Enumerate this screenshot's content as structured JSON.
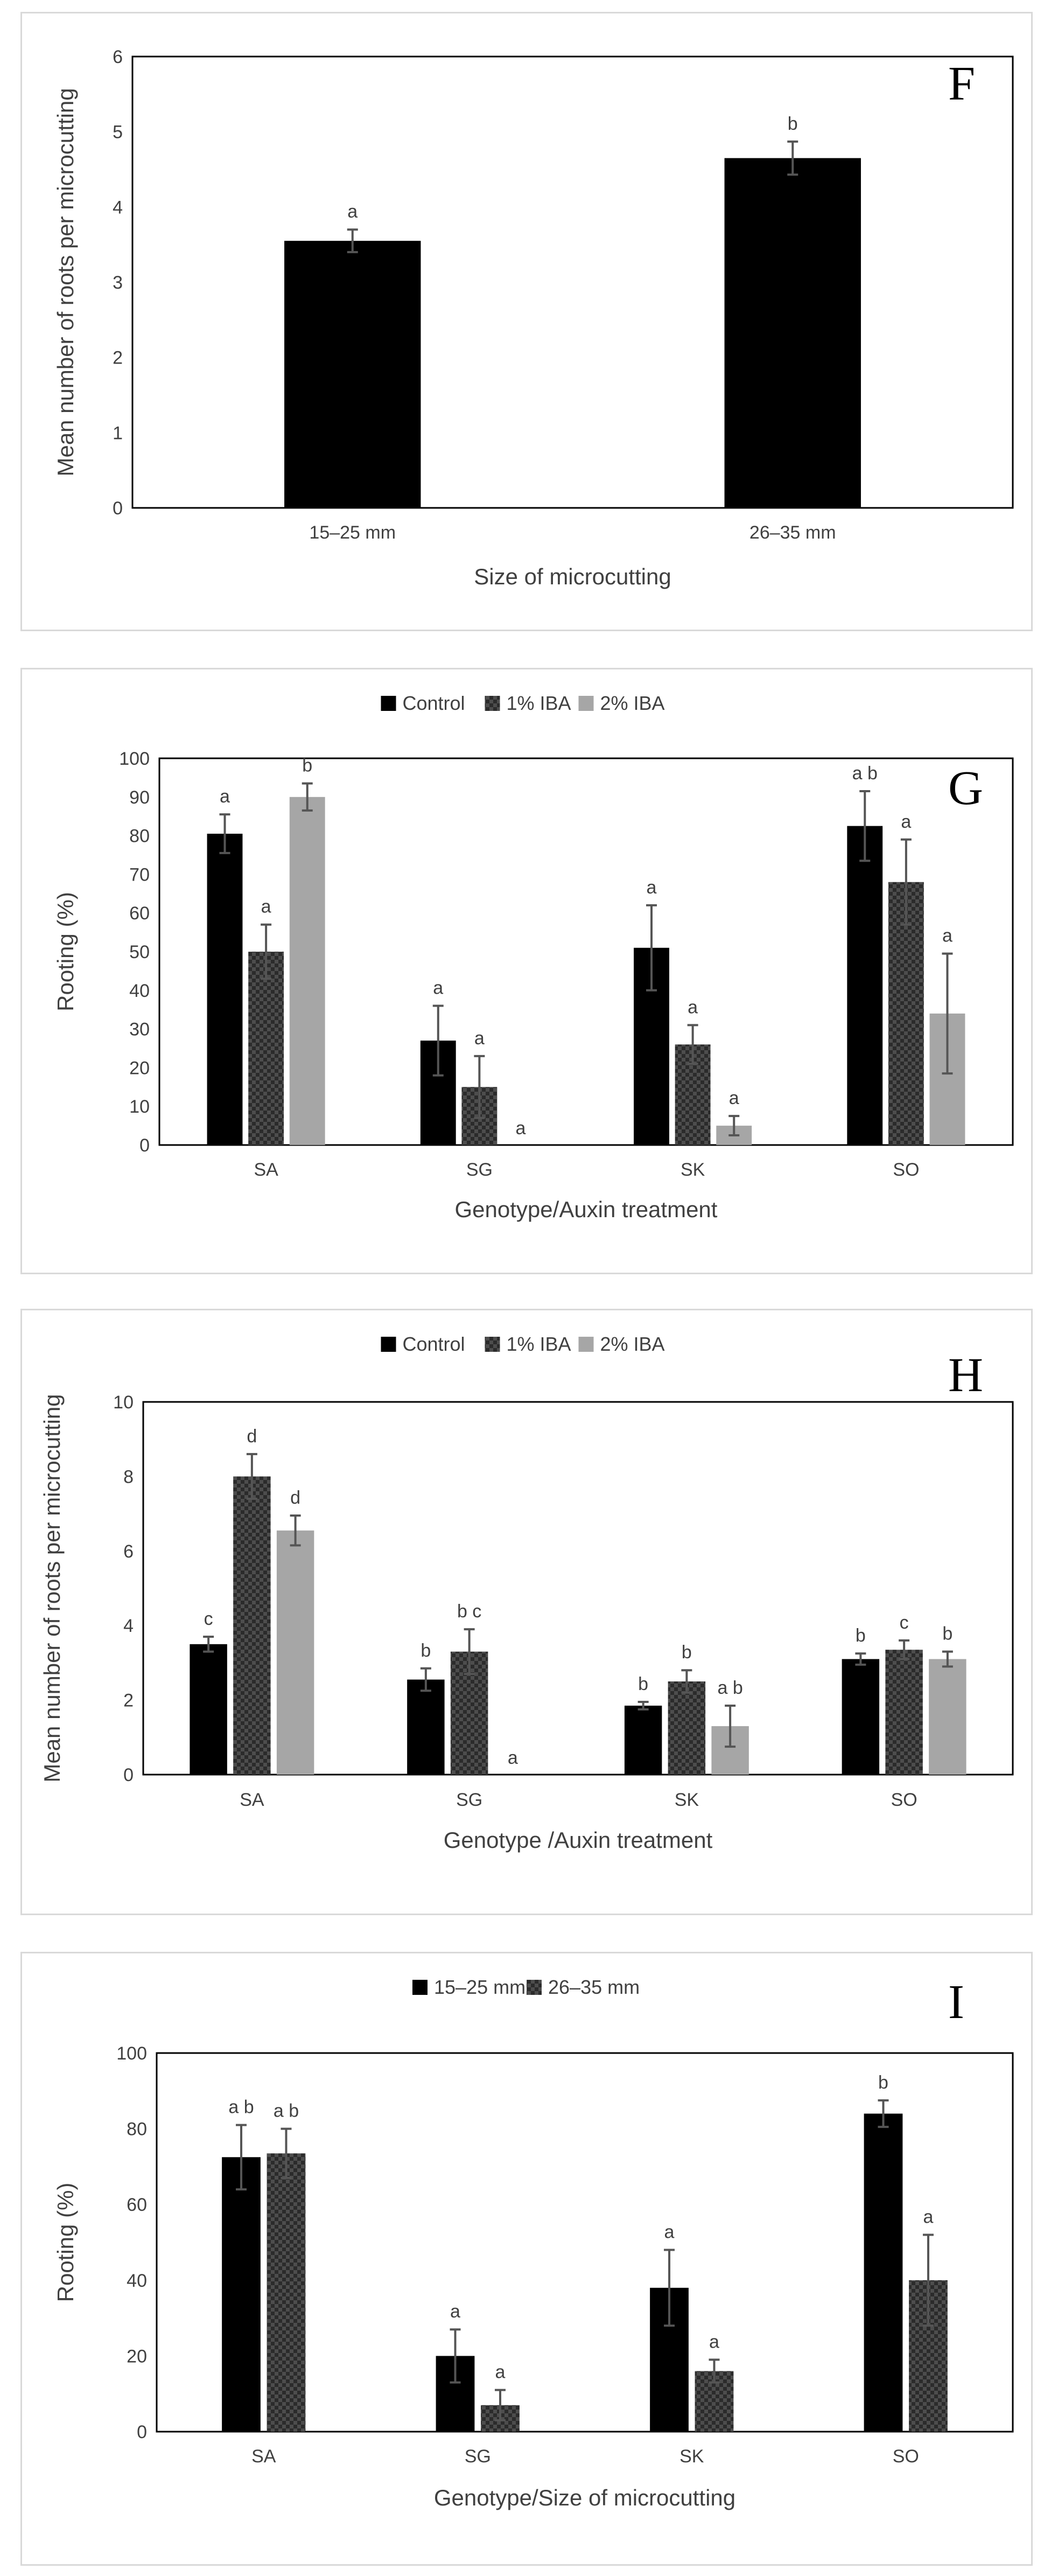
{
  "colors": {
    "control": "#000000",
    "iba1": "#3c3c3c",
    "iba2": "#a6a6a6",
    "axis": "#000000",
    "text": "#404040",
    "error": "#555555"
  },
  "chart_data": [
    {
      "type": "bar",
      "panel_letter": "F",
      "categories": [
        "15–25 mm",
        "26–35 mm"
      ],
      "series": [
        {
          "name": "",
          "values": [
            3.55,
            4.65
          ],
          "errors": [
            0.15,
            0.22
          ],
          "labels": [
            "a",
            "b"
          ],
          "pattern": "solid"
        }
      ],
      "ylabel": "Mean number of roots per microcutting",
      "xlabel": "Size of microcutting",
      "ylim": [
        0,
        6
      ],
      "yticks": [
        0,
        1,
        2,
        3,
        4,
        5,
        6
      ],
      "legend": false
    },
    {
      "type": "bar",
      "panel_letter": "G",
      "categories": [
        "SA",
        "SG",
        "SK",
        "SO"
      ],
      "series": [
        {
          "name": "Control",
          "values": [
            80.5,
            27,
            51,
            82.5
          ],
          "errors": [
            5,
            9,
            11,
            9
          ],
          "labels": [
            "a",
            "a",
            "a",
            "ab"
          ],
          "pattern": "solid"
        },
        {
          "name": "1% IBA",
          "values": [
            50,
            15,
            26,
            68
          ],
          "errors": [
            7,
            8,
            5,
            11
          ],
          "labels": [
            "a",
            "a",
            "a",
            "a"
          ],
          "pattern": "check"
        },
        {
          "name": "2% IBA",
          "values": [
            90,
            0,
            5,
            34
          ],
          "errors": [
            3.5,
            0,
            2.5,
            15.5
          ],
          "labels": [
            "b",
            "a",
            "a",
            "a"
          ],
          "pattern": "light"
        }
      ],
      "ylabel": "Rooting (%)",
      "xlabel": "Genotype/Auxin treatment",
      "ylim": [
        0,
        100
      ],
      "yticks": [
        0,
        10,
        20,
        30,
        40,
        50,
        60,
        70,
        80,
        90,
        100
      ],
      "legend": true
    },
    {
      "type": "bar",
      "panel_letter": "H",
      "categories": [
        "SA",
        "SG",
        "SK",
        "SO"
      ],
      "series": [
        {
          "name": "Control",
          "values": [
            3.5,
            2.55,
            1.85,
            3.1
          ],
          "errors": [
            0.2,
            0.3,
            0.1,
            0.15
          ],
          "labels": [
            "c",
            "b",
            "b",
            "b"
          ],
          "pattern": "solid"
        },
        {
          "name": "1% IBA",
          "values": [
            8,
            3.3,
            2.5,
            3.35
          ],
          "errors": [
            0.6,
            0.6,
            0.3,
            0.25
          ],
          "labels": [
            "d",
            "bc",
            "b",
            "c"
          ],
          "pattern": "check"
        },
        {
          "name": "2% IBA",
          "values": [
            6.55,
            0,
            1.3,
            3.1
          ],
          "errors": [
            0.4,
            0,
            0.55,
            0.2
          ],
          "labels": [
            "d",
            "a",
            "ab",
            "b"
          ],
          "pattern": "light"
        }
      ],
      "ylabel": "Mean number of roots per microcutting",
      "xlabel": "Genotype /Auxin treatment",
      "ylim": [
        0,
        10
      ],
      "yticks": [
        0,
        2,
        4,
        6,
        8,
        10
      ],
      "legend": true
    },
    {
      "type": "bar",
      "panel_letter": "I",
      "categories": [
        "SA",
        "SG",
        "SK",
        "SO"
      ],
      "series": [
        {
          "name": "15–25 mm",
          "values": [
            72.5,
            20,
            38,
            84
          ],
          "errors": [
            8.5,
            7,
            10,
            3.5
          ],
          "labels": [
            "ab",
            "a",
            "a",
            "b"
          ],
          "pattern": "solid"
        },
        {
          "name": "26–35 mm",
          "values": [
            73.5,
            7,
            16,
            40
          ],
          "errors": [
            6.5,
            4,
            3,
            12
          ],
          "labels": [
            "ab",
            "a",
            "a",
            "a"
          ],
          "pattern": "check"
        }
      ],
      "ylabel": "Rooting (%)",
      "xlabel": "Genotype/Size of microcutting",
      "ylim": [
        0,
        100
      ],
      "yticks": [
        0,
        20,
        40,
        60,
        80,
        100
      ],
      "legend": true
    }
  ]
}
